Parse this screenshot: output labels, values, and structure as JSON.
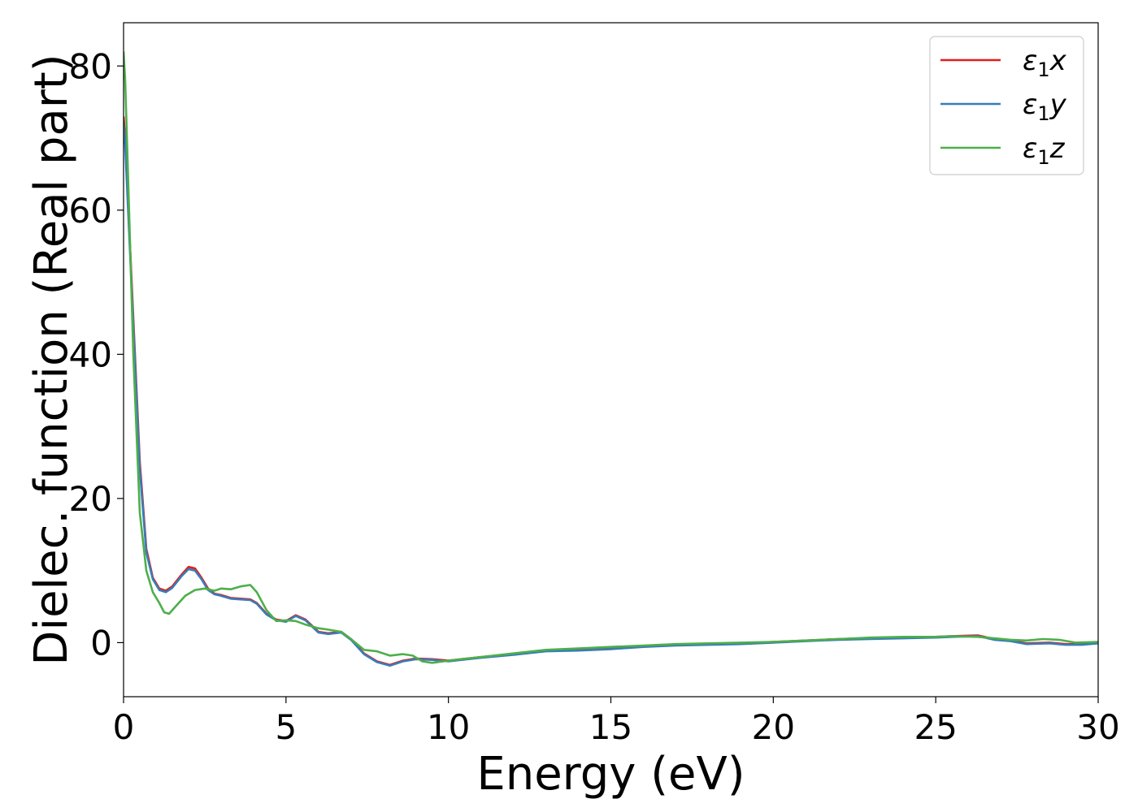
{
  "chart_data": {
    "type": "line",
    "title": "",
    "xlabel": "Energy (eV)",
    "ylabel": "Dielec. function (Real part)",
    "xlim": [
      0,
      30
    ],
    "ylim": [
      -7.5,
      86
    ],
    "xticks": [
      0,
      5,
      10,
      15,
      20,
      25,
      30
    ],
    "xtick_labels": [
      "0",
      "5",
      "10",
      "15",
      "20",
      "25",
      "30"
    ],
    "yticks": [
      0,
      20,
      40,
      60,
      80
    ],
    "ytick_labels": [
      "0",
      "20",
      "40",
      "60",
      "80"
    ],
    "grid": false,
    "legend": "top-right",
    "series": [
      {
        "name": "ε1x",
        "legend_main": "ε",
        "legend_sub": "1",
        "legend_var": "x",
        "color": "#e41a1c",
        "x": [
          0,
          0.05,
          0.15,
          0.3,
          0.5,
          0.7,
          0.9,
          1.1,
          1.3,
          1.5,
          1.8,
          2.0,
          2.2,
          2.4,
          2.6,
          2.8,
          3.0,
          3.3,
          3.6,
          3.9,
          4.1,
          4.4,
          4.7,
          5.0,
          5.3,
          5.6,
          6.0,
          6.3,
          6.7,
          7.0,
          7.4,
          7.8,
          8.2,
          8.6,
          9.0,
          9.5,
          10.0,
          11,
          12,
          13,
          14,
          15,
          16,
          17,
          18,
          19,
          20,
          21,
          22,
          23,
          24,
          25,
          25.5,
          26.3,
          26.8,
          27.3,
          27.8,
          28.5,
          29.0,
          29.5,
          30
        ],
        "y": [
          73,
          70,
          60,
          45,
          25,
          13,
          9,
          7.5,
          7.2,
          7.8,
          9.5,
          10.5,
          10.3,
          9.0,
          7.5,
          6.8,
          6.6,
          6.2,
          6.1,
          6.0,
          5.5,
          4.0,
          3.2,
          3.0,
          3.8,
          3.2,
          1.5,
          1.3,
          1.5,
          0.5,
          -1.5,
          -2.6,
          -3.1,
          -2.5,
          -2.2,
          -2.3,
          -2.5,
          -2.0,
          -1.6,
          -1.1,
          -1.0,
          -0.8,
          -0.5,
          -0.3,
          -0.2,
          -0.1,
          0.1,
          0.3,
          0.5,
          0.6,
          0.7,
          0.8,
          0.9,
          1.0,
          0.5,
          0.3,
          -0.1,
          0.0,
          -0.2,
          -0.2,
          0.0
        ]
      },
      {
        "name": "ε1y",
        "legend_main": "ε",
        "legend_sub": "1",
        "legend_var": "y",
        "color": "#377eb8",
        "x": [
          0,
          0.05,
          0.15,
          0.3,
          0.5,
          0.7,
          0.9,
          1.1,
          1.3,
          1.5,
          1.8,
          2.0,
          2.2,
          2.4,
          2.6,
          2.8,
          3.0,
          3.3,
          3.6,
          3.9,
          4.1,
          4.4,
          4.7,
          5.0,
          5.3,
          5.6,
          6.0,
          6.3,
          6.7,
          7.0,
          7.4,
          7.8,
          8.2,
          8.6,
          9.0,
          9.5,
          10.0,
          11,
          12,
          13,
          14,
          15,
          16,
          17,
          18,
          19,
          20,
          21,
          22,
          23,
          24,
          25,
          25.5,
          26.3,
          26.8,
          27.3,
          27.8,
          28.5,
          29.0,
          29.5,
          30
        ],
        "y": [
          72,
          69,
          59,
          44,
          24,
          12.5,
          8.8,
          7.3,
          7.0,
          7.6,
          9.3,
          10.2,
          10.0,
          8.8,
          7.3,
          6.7,
          6.5,
          6.1,
          6.0,
          5.9,
          5.4,
          3.9,
          3.1,
          2.9,
          3.7,
          3.1,
          1.4,
          1.2,
          1.4,
          0.4,
          -1.6,
          -2.7,
          -3.2,
          -2.6,
          -2.3,
          -2.4,
          -2.6,
          -2.1,
          -1.7,
          -1.2,
          -1.1,
          -0.9,
          -0.6,
          -0.4,
          -0.3,
          -0.2,
          0.0,
          0.2,
          0.4,
          0.5,
          0.6,
          0.7,
          0.8,
          0.9,
          0.4,
          0.2,
          -0.2,
          -0.1,
          -0.3,
          -0.3,
          -0.1
        ]
      },
      {
        "name": "ε1z",
        "legend_main": "ε",
        "legend_sub": "1",
        "legend_var": "z",
        "color": "#4daf4a",
        "x": [
          0,
          0.05,
          0.15,
          0.3,
          0.5,
          0.7,
          0.9,
          1.1,
          1.25,
          1.4,
          1.6,
          1.9,
          2.2,
          2.5,
          2.8,
          3.0,
          3.3,
          3.6,
          3.9,
          4.1,
          4.4,
          4.7,
          5.0,
          5.3,
          5.6,
          6.0,
          6.3,
          6.7,
          7.0,
          7.4,
          7.8,
          8.2,
          8.6,
          8.9,
          9.2,
          9.5,
          10.0,
          11,
          12,
          13,
          14,
          15,
          16,
          17,
          18,
          19,
          20,
          21,
          22,
          23,
          24,
          25,
          25.5,
          26.3,
          26.8,
          27.3,
          27.8,
          28.3,
          28.8,
          29.3,
          30
        ],
        "y": [
          82,
          78,
          63,
          40,
          18,
          10,
          7,
          5.5,
          4.2,
          4.0,
          5.0,
          6.5,
          7.3,
          7.5,
          7.2,
          7.5,
          7.4,
          7.8,
          8.0,
          7.0,
          4.5,
          3.0,
          3.1,
          3.0,
          2.5,
          2.0,
          1.8,
          1.5,
          0.5,
          -1.0,
          -1.2,
          -1.8,
          -1.6,
          -1.8,
          -2.6,
          -2.8,
          -2.5,
          -2.0,
          -1.5,
          -1.0,
          -0.8,
          -0.6,
          -0.4,
          -0.2,
          -0.1,
          0.0,
          0.1,
          0.3,
          0.5,
          0.7,
          0.8,
          0.8,
          0.9,
          0.8,
          0.6,
          0.4,
          0.3,
          0.5,
          0.4,
          0.0,
          0.1
        ]
      }
    ]
  }
}
